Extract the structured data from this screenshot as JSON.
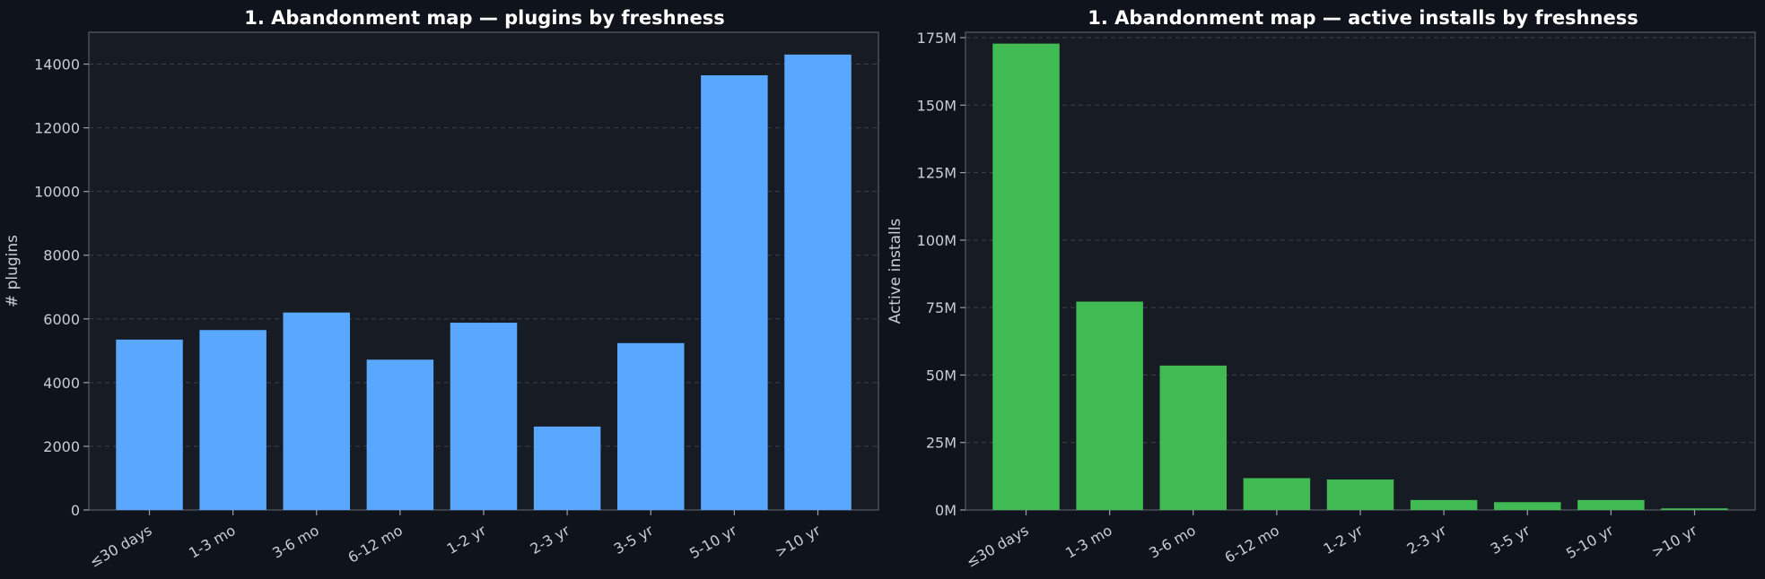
{
  "colors": {
    "background": "#0f131b",
    "plot_background": "#171b23",
    "bar_left": "#5aa7ff",
    "bar_right": "#40ba52"
  },
  "chart_data": [
    {
      "type": "bar",
      "title": "1. Abandonment map — plugins by freshness",
      "xlabel": "",
      "ylabel": "# plugins",
      "categories": [
        "≤30 days",
        "1-3 mo",
        "3-6 mo",
        "6-12 mo",
        "1-2 yr",
        "2-3 yr",
        "3-5 yr",
        "5-10 yr",
        ">10 yr"
      ],
      "values": [
        5350,
        5650,
        6200,
        4720,
        5880,
        2620,
        5240,
        13650,
        14300
      ],
      "ylim": [
        0,
        15000
      ],
      "yticks": [
        0,
        2000,
        4000,
        6000,
        8000,
        10000,
        12000,
        14000
      ],
      "ytick_labels": [
        "0",
        "2000",
        "4000",
        "6000",
        "8000",
        "10000",
        "12000",
        "14000"
      ],
      "grid": true,
      "color": "#5aa7ff"
    },
    {
      "type": "bar",
      "title": "1. Abandonment map — active installs by freshness",
      "xlabel": "",
      "ylabel": "Active installs",
      "categories": [
        "≤30 days",
        "1-3 mo",
        "3-6 mo",
        "6-12 mo",
        "1-2 yr",
        "2-3 yr",
        "3-5 yr",
        "5-10 yr",
        ">10 yr"
      ],
      "values": [
        172800000,
        77200000,
        53500000,
        11800000,
        11300000,
        3700000,
        2900000,
        3700000,
        600000
      ],
      "ylim": [
        0,
        177000000
      ],
      "yticks": [
        0,
        25000000,
        50000000,
        75000000,
        100000000,
        125000000,
        150000000,
        175000000
      ],
      "ytick_labels": [
        "0M",
        "25M",
        "50M",
        "75M",
        "100M",
        "125M",
        "150M",
        "175M"
      ],
      "grid": true,
      "color": "#40ba52"
    }
  ]
}
